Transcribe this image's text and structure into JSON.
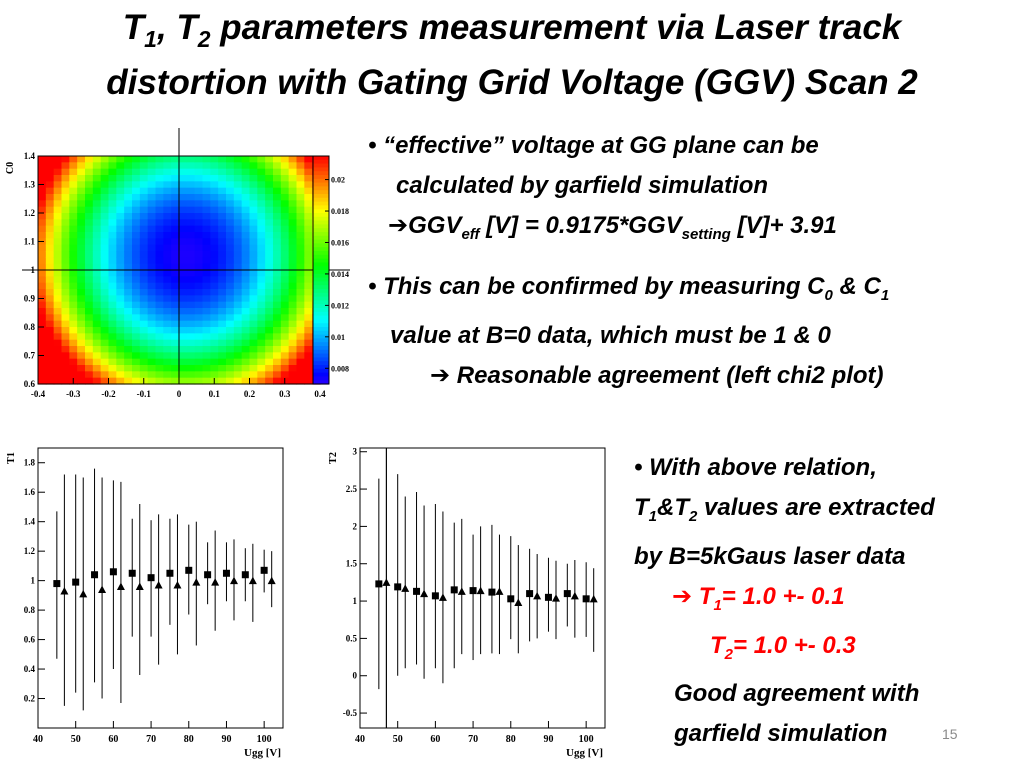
{
  "title": {
    "t1_main": "T",
    "t1_sub": "1",
    "sep": ", ",
    "t2_main": "T",
    "t2_sub": "2",
    "line1_rest": " parameters measurement via Laser track",
    "line2": "distortion with Gating Grid Voltage (GGV) Scan 2"
  },
  "bullet1": {
    "l1": "• “effective” voltage at GG plane can be",
    "l2": "calculated by garfield  simulation",
    "arrow": "➔",
    "eq_a": "GGV",
    "eq_a_sub": "eff",
    "eq_b": " [V] = 0.9175*GGV",
    "eq_b_sub": "setting",
    "eq_c": " [V]+ 3.91"
  },
  "bullet2": {
    "l1_a": "• This can be confirmed by measuring C",
    "l1_sub0": "0",
    "l1_b": " & C",
    "l1_sub1": "1",
    "l2": "value at B=0 data, which must be 1 & 0",
    "arrow": "➔",
    "l3": " Reasonable agreement (left chi2 plot)"
  },
  "bullet3": {
    "l1": "• With above relation,",
    "l2_a": "T",
    "l2_sub1": "1",
    "l2_b": "&T",
    "l2_sub2": "2",
    "l2_c": " values are extracted",
    "l3": "by B=5kGaus laser data",
    "r1_arrow": "➔",
    "r1_a": " T",
    "r1_sub": "1",
    "r1_b": "= 1.0 +- 0.1",
    "r2_a": "T",
    "r2_sub": "2",
    "r2_b": "= 1.0 +- 0.3",
    "l6": "Good agreement with",
    "l7": "garfield simulation"
  },
  "page_number": "15",
  "colors": {
    "text": "#000000",
    "result": "#ff0000",
    "page_number": "#8a8a8a"
  },
  "chart_data": [
    {
      "type": "heatmap",
      "title": "",
      "xlabel": "",
      "ylabel": "C0",
      "xlim": [
        -0.4,
        0.4
      ],
      "ylim": [
        0.6,
        1.4
      ],
      "x_ticks": [
        "-0.4",
        "-0.3",
        "-0.2",
        "-0.1",
        "0",
        "0.1",
        "0.2",
        "0.3",
        "0.4"
      ],
      "y_ticks": [
        "0.6",
        "0.7",
        "0.8",
        "0.9",
        "1",
        "1.1",
        "1.2",
        "1.3",
        "1.4"
      ],
      "z_ticks": [
        "0.008",
        "0.01",
        "0.012",
        "0.014",
        "0.016",
        "0.018",
        "0.02"
      ],
      "zlim": [
        0.007,
        0.0215
      ],
      "minimum": [
        0.02,
        1.05
      ],
      "crosshair": [
        0.0,
        1.0
      ],
      "colormap": "rainbow (blue = low, red = high)"
    },
    {
      "type": "scatter",
      "xlabel": "Ugg [V]",
      "ylabel": "T1",
      "xlim": [
        40,
        105
      ],
      "ylim": [
        0,
        1.9
      ],
      "x_ticks": [
        "40",
        "50",
        "60",
        "70",
        "80",
        "90",
        "100"
      ],
      "y_ticks": [
        "0.2",
        "0.4",
        "0.6",
        "0.8",
        "1",
        "1.2",
        "1.4",
        "1.6",
        "1.8"
      ],
      "series": [
        {
          "marker": "square",
          "points": [
            {
              "x": 45,
              "y": 0.98,
              "lo": 0.47,
              "hi": 1.47
            },
            {
              "x": 50,
              "y": 0.99,
              "lo": 0.24,
              "hi": 1.72
            },
            {
              "x": 55,
              "y": 1.04,
              "lo": 0.31,
              "hi": 1.76
            },
            {
              "x": 60,
              "y": 1.06,
              "lo": 0.4,
              "hi": 1.68
            },
            {
              "x": 65,
              "y": 1.05,
              "lo": 0.62,
              "hi": 1.42
            },
            {
              "x": 70,
              "y": 1.02,
              "lo": 0.62,
              "hi": 1.41
            },
            {
              "x": 75,
              "y": 1.05,
              "lo": 0.7,
              "hi": 1.42
            },
            {
              "x": 80,
              "y": 1.07,
              "lo": 0.77,
              "hi": 1.38
            },
            {
              "x": 85,
              "y": 1.04,
              "lo": 0.84,
              "hi": 1.26
            },
            {
              "x": 90,
              "y": 1.05,
              "lo": 0.86,
              "hi": 1.26
            },
            {
              "x": 95,
              "y": 1.04,
              "lo": 0.86,
              "hi": 1.22
            },
            {
              "x": 100,
              "y": 1.07,
              "lo": 0.92,
              "hi": 1.21
            }
          ]
        },
        {
          "marker": "triangle",
          "points": [
            {
              "x": 47,
              "y": 0.93,
              "lo": 0.15,
              "hi": 1.72
            },
            {
              "x": 52,
              "y": 0.91,
              "lo": 0.12,
              "hi": 1.7
            },
            {
              "x": 57,
              "y": 0.94,
              "lo": 0.2,
              "hi": 1.7
            },
            {
              "x": 62,
              "y": 0.96,
              "lo": 0.17,
              "hi": 1.67
            },
            {
              "x": 67,
              "y": 0.96,
              "lo": 0.36,
              "hi": 1.52
            },
            {
              "x": 72,
              "y": 0.97,
              "lo": 0.43,
              "hi": 1.45
            },
            {
              "x": 77,
              "y": 0.97,
              "lo": 0.5,
              "hi": 1.45
            },
            {
              "x": 82,
              "y": 0.99,
              "lo": 0.56,
              "hi": 1.4
            },
            {
              "x": 87,
              "y": 0.99,
              "lo": 0.66,
              "hi": 1.34
            },
            {
              "x": 92,
              "y": 1.0,
              "lo": 0.73,
              "hi": 1.28
            },
            {
              "x": 97,
              "y": 1.0,
              "lo": 0.72,
              "hi": 1.25
            },
            {
              "x": 102,
              "y": 1.0,
              "lo": 0.82,
              "hi": 1.2
            }
          ]
        }
      ]
    },
    {
      "type": "scatter",
      "xlabel": "Ugg [V]",
      "ylabel": "T2",
      "xlim": [
        40,
        105
      ],
      "ylim": [
        -0.7,
        3.05
      ],
      "x_ticks": [
        "40",
        "50",
        "60",
        "70",
        "80",
        "90",
        "100"
      ],
      "y_ticks": [
        "-0.5",
        "0",
        "0.5",
        "1",
        "1.5",
        "2",
        "2.5",
        "3"
      ],
      "vertical_line_x": 47,
      "series": [
        {
          "marker": "square",
          "points": [
            {
              "x": 45,
              "y": 1.23,
              "lo": -0.18,
              "hi": 2.64
            },
            {
              "x": 50,
              "y": 1.19,
              "lo": 0.0,
              "hi": 2.7
            },
            {
              "x": 55,
              "y": 1.13,
              "lo": 0.15,
              "hi": 2.46
            },
            {
              "x": 60,
              "y": 1.07,
              "lo": 0.1,
              "hi": 2.3
            },
            {
              "x": 65,
              "y": 1.15,
              "lo": 0.1,
              "hi": 2.05
            },
            {
              "x": 70,
              "y": 1.14,
              "lo": 0.21,
              "hi": 1.89
            },
            {
              "x": 75,
              "y": 1.12,
              "lo": 0.3,
              "hi": 2.02
            },
            {
              "x": 80,
              "y": 1.03,
              "lo": 0.49,
              "hi": 1.87
            },
            {
              "x": 85,
              "y": 1.1,
              "lo": 0.46,
              "hi": 1.7
            },
            {
              "x": 90,
              "y": 1.05,
              "lo": 0.59,
              "hi": 1.58
            },
            {
              "x": 95,
              "y": 1.1,
              "lo": 0.66,
              "hi": 1.5
            },
            {
              "x": 100,
              "y": 1.03,
              "lo": 0.52,
              "hi": 1.52
            }
          ]
        },
        {
          "marker": "triangle",
          "points": [
            {
              "x": 47,
              "y": 1.25,
              "lo": -0.82,
              "hi": 3.1
            },
            {
              "x": 52,
              "y": 1.17,
              "lo": 0.1,
              "hi": 2.4
            },
            {
              "x": 57,
              "y": 1.1,
              "lo": -0.04,
              "hi": 2.28
            },
            {
              "x": 62,
              "y": 1.05,
              "lo": -0.1,
              "hi": 2.2
            },
            {
              "x": 67,
              "y": 1.13,
              "lo": 0.29,
              "hi": 2.1
            },
            {
              "x": 72,
              "y": 1.14,
              "lo": 0.29,
              "hi": 2.0
            },
            {
              "x": 77,
              "y": 1.13,
              "lo": 0.29,
              "hi": 1.89
            },
            {
              "x": 82,
              "y": 0.98,
              "lo": 0.3,
              "hi": 1.75
            },
            {
              "x": 87,
              "y": 1.07,
              "lo": 0.5,
              "hi": 1.63
            },
            {
              "x": 92,
              "y": 1.04,
              "lo": 0.49,
              "hi": 1.54
            },
            {
              "x": 97,
              "y": 1.07,
              "lo": 0.51,
              "hi": 1.55
            },
            {
              "x": 102,
              "y": 1.03,
              "lo": 0.32,
              "hi": 1.44
            }
          ]
        }
      ]
    }
  ]
}
